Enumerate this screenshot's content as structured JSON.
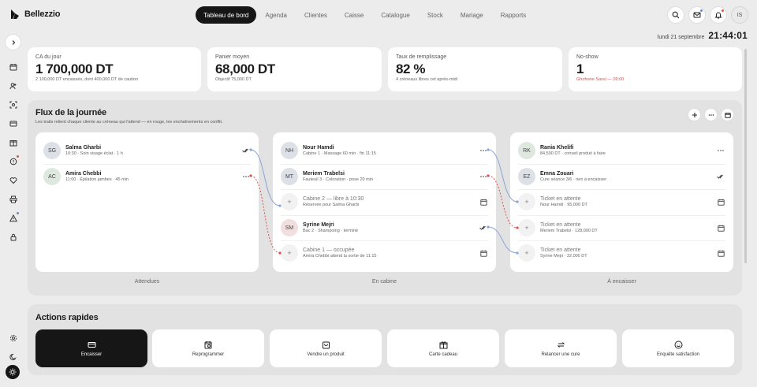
{
  "brand": {
    "name": "Bellezzio",
    "icon": "logo-mark"
  },
  "nav": {
    "tabs": [
      {
        "label": "Tableau de bord",
        "active": true
      },
      {
        "label": "Agenda"
      },
      {
        "label": "Clientes"
      },
      {
        "label": "Caisse"
      },
      {
        "label": "Catalogue"
      },
      {
        "label": "Stock"
      },
      {
        "label": "Mariage"
      },
      {
        "label": "Rapports"
      }
    ]
  },
  "topbar": {
    "buttons": [
      {
        "name": "search",
        "icon": "search-icon"
      },
      {
        "name": "messages",
        "icon": "mail-icon",
        "dot": "#6a86c9"
      },
      {
        "name": "notifications",
        "icon": "bell-icon",
        "dot": "#d9534f"
      }
    ],
    "avatar": "IS"
  },
  "datetime": {
    "date": "lundi 21 septembre",
    "time": "21:44:01"
  },
  "sidebar": {
    "icons": [
      "calendar-icon",
      "users-icon",
      "scan-icon",
      "card-icon",
      "gift-icon",
      "alert-badge-icon",
      "heart-icon",
      "printer-icon",
      "warning-icon",
      "lock-icon"
    ],
    "dots": {
      "5": "#d9534f",
      "8": "#6a86c9"
    },
    "bottom": [
      "settings-icon",
      "moon-icon"
    ]
  },
  "kpis": [
    {
      "label": "CA du jour",
      "value": "1 700,000 DT",
      "sub": "2 100,000 DT encaissés, dont 400,000 DT de caution"
    },
    {
      "label": "Panier moyen",
      "value": "68,000 DT",
      "sub": "Objectif 75,000 DT"
    },
    {
      "label": "Taux de remplissage",
      "value": "82 %",
      "sub": "4 créneaux libres cet après-midi"
    },
    {
      "label": "No-show",
      "value": "1",
      "sub": "Ghofrane Sassi — 09:00",
      "sub_color": "#d9534f"
    }
  ],
  "flux": {
    "title": "Flux de la journée",
    "subtitle": "Les traits relient chaque cliente au créneau qui l'attend — en rouge, les enchaînements en conflit.",
    "columns": [
      {
        "label": "Attendues",
        "cards": [
          {
            "initials": "SG",
            "name": "Salma Gharbi",
            "detail": "10:30 · Soin visage éclat · 1 h",
            "icon": "double-check-icon",
            "style": "blue"
          },
          {
            "initials": "AC",
            "name": "Amira Chebbi",
            "detail": "11:00 · Épilation jambes · 45 min",
            "icon": "dots-icon",
            "style": "green"
          }
        ]
      },
      {
        "label": "En cabine",
        "cards": [
          {
            "initials": "NH",
            "name": "Nour Hamdi",
            "detail": "Cabine 1 · Massage 60 min · fin 11:15",
            "icon": "dots-icon",
            "style": "blue"
          },
          {
            "initials": "MT",
            "name": "Meriem Trabelsi",
            "detail": "Fauteuil 3 · Coloration · pose 20 min",
            "icon": "dots-icon",
            "style": "blue"
          },
          {
            "initials": "+",
            "name": "Cabine 2 — libre à 10:30",
            "detail": "Réservée pour Salma Gharbi",
            "icon": "calendar-icon",
            "style": "slot"
          },
          {
            "initials": "SM",
            "name": "Syrine Mejri",
            "detail": "Bac 2 · Shampoing · terminé",
            "icon": "double-check-icon",
            "style": "pink"
          },
          {
            "initials": "+",
            "name": "Cabine 1 — occupée",
            "detail": "Amira Chebbi attend la sortie de 11:15",
            "icon": "calendar-icon",
            "style": "slot"
          }
        ]
      },
      {
        "label": "À encaisser",
        "cards": [
          {
            "initials": "RK",
            "name": "Rania Khelifi",
            "detail": "84,500 DT · conseil produit à faire",
            "icon": "dots-icon",
            "style": "green"
          },
          {
            "initials": "EZ",
            "name": "Emna Zouari",
            "detail": "Cure séance 3/6 · rien à encaisser",
            "icon": "double-check-icon",
            "style": "blue"
          },
          {
            "initials": "+",
            "name": "Ticket en attente",
            "detail": "Nour Hamdi · 95,000 DT",
            "icon": "calendar-icon",
            "style": "slot"
          },
          {
            "initials": "+",
            "name": "Ticket en attente",
            "detail": "Meriem Trabelsi · 128,000 DT",
            "icon": "calendar-icon",
            "style": "slot"
          },
          {
            "initials": "+",
            "name": "Ticket en attente",
            "detail": "Syrine Mejri · 32,000 DT",
            "icon": "calendar-icon",
            "style": "slot"
          }
        ]
      }
    ],
    "link_colors": {
      "ok": "#8aa4d6",
      "conflict": "#d9534f"
    }
  },
  "quick_actions": {
    "title": "Actions rapides",
    "items": [
      {
        "label": "Encaisser",
        "icon": "card-icon",
        "primary": true
      },
      {
        "label": "Reprogrammer",
        "icon": "calendar-clock-icon"
      },
      {
        "label": "Vendre un produit",
        "icon": "bag-icon"
      },
      {
        "label": "Carte cadeau",
        "icon": "gift-icon"
      },
      {
        "label": "Relancer une cure",
        "icon": "repeat-icon"
      },
      {
        "label": "Enquête satisfaction",
        "icon": "smile-icon"
      }
    ]
  }
}
